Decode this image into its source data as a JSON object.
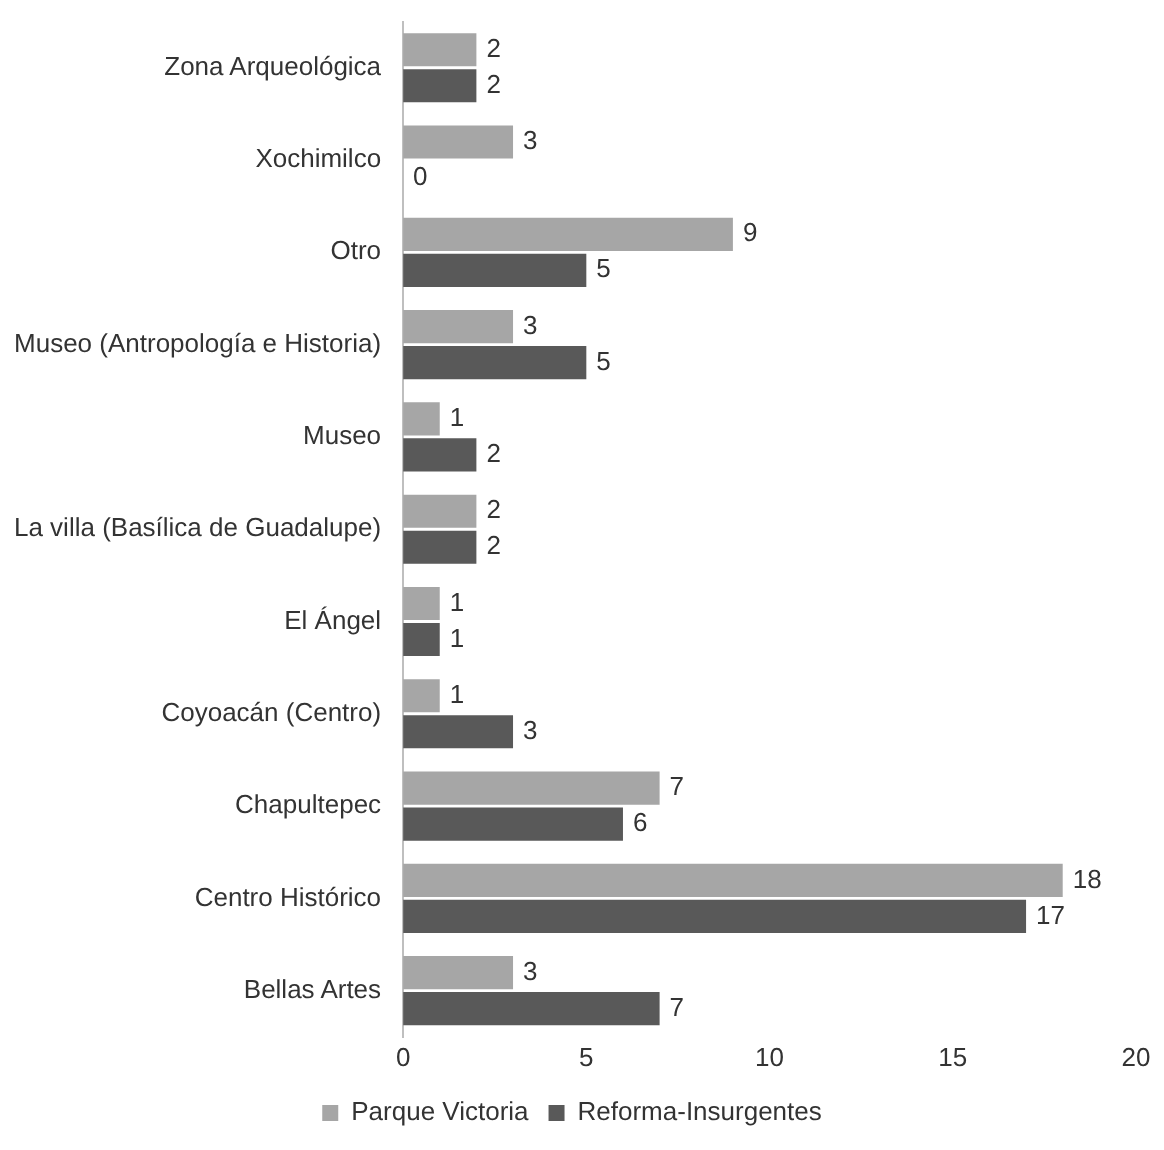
{
  "chart_data": {
    "type": "bar",
    "orientation": "horizontal",
    "categories": [
      "Zona Arqueológica",
      "Xochimilco",
      "Otro",
      "Museo (Antropología e Historia)",
      "Museo",
      "La villa (Basílica de Guadalupe)",
      "El Ángel",
      "Coyoacán (Centro)",
      "Chapultepec",
      "Centro Histórico",
      "Bellas Artes"
    ],
    "series": [
      {
        "name": "Parque Victoria",
        "color": "#a6a6a6",
        "values": [
          2,
          3,
          9,
          3,
          1,
          2,
          1,
          1,
          7,
          18,
          3
        ]
      },
      {
        "name": "Reforma-Insurgentes",
        "color": "#595959",
        "values": [
          2,
          0,
          5,
          5,
          2,
          2,
          1,
          3,
          6,
          17,
          7
        ]
      }
    ],
    "xlim": [
      0,
      20
    ],
    "xticks": [
      0,
      5,
      10,
      15,
      20
    ],
    "grid": false,
    "legend": "bottom",
    "data_labels": true
  }
}
